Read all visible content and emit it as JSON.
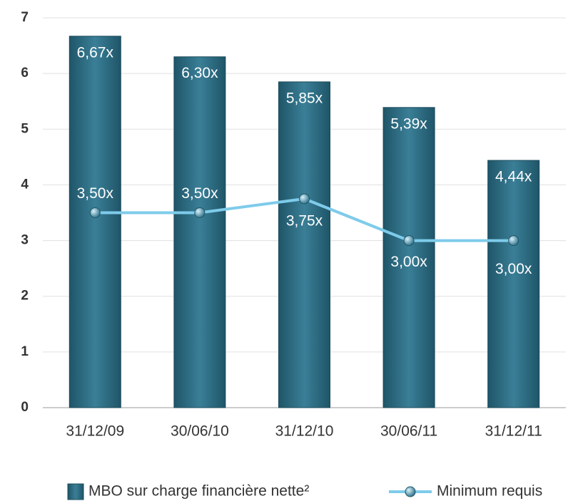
{
  "chart_data": {
    "type": "bar",
    "categories": [
      "31/12/09",
      "30/06/10",
      "31/12/10",
      "30/06/11",
      "31/12/11"
    ],
    "series": [
      {
        "name": "MBO sur charge financière nette²",
        "type": "bar",
        "color": "#2f7088",
        "values": [
          6.67,
          6.3,
          5.85,
          5.39,
          4.44
        ],
        "value_labels": [
          "6,67x",
          "6,30x",
          "5,85x",
          "5,39x",
          "4,44x"
        ]
      },
      {
        "name": "Minimum requis",
        "type": "line",
        "color": "#7ecbea",
        "values": [
          3.5,
          3.5,
          3.75,
          3.0,
          3.0
        ],
        "value_labels": [
          "3,50x",
          "3,50x",
          "3,75x",
          "3,00x",
          "3,00x"
        ]
      }
    ],
    "ylim": [
      0,
      7
    ],
    "yticks": [
      0,
      1,
      2,
      3,
      4,
      5,
      6,
      7
    ],
    "grid": true
  }
}
